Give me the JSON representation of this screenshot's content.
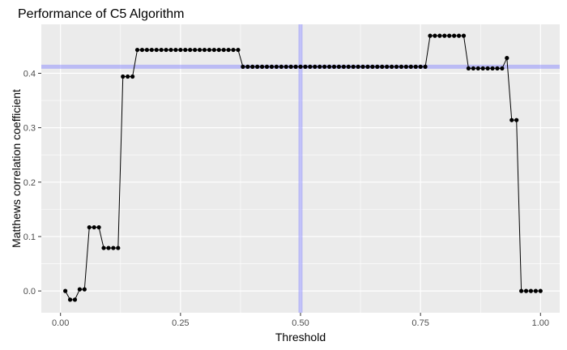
{
  "chart_data": {
    "type": "line",
    "title": "Performance of C5 Algorithm",
    "xlabel": "Threshold",
    "ylabel": "Matthews correlation coefficient",
    "xlim": [
      -0.04,
      1.04
    ],
    "ylim": [
      -0.04,
      0.49
    ],
    "xticks": [
      0,
      0.25,
      0.5,
      0.75,
      1
    ],
    "xtick_labels": [
      "0.00",
      "0.25",
      "0.50",
      "0.75",
      "1.00"
    ],
    "yticks": [
      0,
      0.1,
      0.2,
      0.3,
      0.4
    ],
    "ytick_labels": [
      "0.0",
      "0.1",
      "0.2",
      "0.3",
      "0.4"
    ],
    "grid": true,
    "legend": "none",
    "reference_lines": {
      "vertical_x": 0.5,
      "horizontal_y": 0.412,
      "color": "#8080ff"
    },
    "series": [
      {
        "color": "#000000",
        "x": [
          0.01,
          0.02,
          0.03,
          0.04,
          0.05,
          0.06,
          0.07,
          0.08,
          0.09,
          0.1,
          0.11,
          0.12,
          0.13,
          0.14,
          0.15,
          0.16,
          0.17,
          0.18,
          0.19,
          0.2,
          0.21,
          0.22,
          0.23,
          0.24,
          0.25,
          0.26,
          0.27,
          0.28,
          0.29,
          0.3,
          0.31,
          0.32,
          0.33,
          0.34,
          0.35,
          0.36,
          0.37,
          0.38,
          0.39,
          0.4,
          0.41,
          0.42,
          0.43,
          0.44,
          0.45,
          0.46,
          0.47,
          0.48,
          0.49,
          0.5,
          0.51,
          0.52,
          0.53,
          0.54,
          0.55,
          0.56,
          0.57,
          0.58,
          0.59,
          0.6,
          0.61,
          0.62,
          0.63,
          0.64,
          0.65,
          0.66,
          0.67,
          0.68,
          0.69,
          0.7,
          0.71,
          0.72,
          0.73,
          0.74,
          0.75,
          0.76,
          0.77,
          0.78,
          0.79,
          0.8,
          0.81,
          0.82,
          0.83,
          0.84,
          0.85,
          0.86,
          0.87,
          0.88,
          0.89,
          0.9,
          0.91,
          0.92,
          0.93,
          0.94,
          0.95,
          0.96,
          0.97,
          0.98,
          0.99,
          1.0
        ],
        "y": [
          0.0,
          -0.016,
          -0.016,
          0.003,
          0.003,
          0.117,
          0.117,
          0.117,
          0.079,
          0.079,
          0.079,
          0.079,
          0.394,
          0.394,
          0.394,
          0.443,
          0.443,
          0.443,
          0.443,
          0.443,
          0.443,
          0.443,
          0.443,
          0.443,
          0.443,
          0.443,
          0.443,
          0.443,
          0.443,
          0.443,
          0.443,
          0.443,
          0.443,
          0.443,
          0.443,
          0.443,
          0.443,
          0.412,
          0.412,
          0.412,
          0.412,
          0.412,
          0.412,
          0.412,
          0.412,
          0.412,
          0.412,
          0.412,
          0.412,
          0.412,
          0.412,
          0.412,
          0.412,
          0.412,
          0.412,
          0.412,
          0.412,
          0.412,
          0.412,
          0.412,
          0.412,
          0.412,
          0.412,
          0.412,
          0.412,
          0.412,
          0.412,
          0.412,
          0.412,
          0.412,
          0.412,
          0.412,
          0.412,
          0.412,
          0.412,
          0.412,
          0.469,
          0.469,
          0.469,
          0.469,
          0.469,
          0.469,
          0.469,
          0.469,
          0.409,
          0.409,
          0.409,
          0.409,
          0.409,
          0.409,
          0.409,
          0.409,
          0.428,
          0.314,
          0.314,
          0.0,
          0.0,
          0.0,
          0.0,
          0.0
        ]
      }
    ]
  }
}
